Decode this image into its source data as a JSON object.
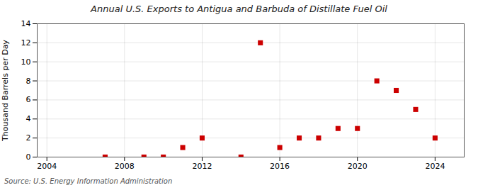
{
  "chart_data": {
    "type": "scatter",
    "title": "Annual U.S. Exports to Antigua and Barbuda of Distillate Fuel Oil",
    "ylabel": "Thousand Barrels per Day",
    "source": "Source: U.S. Energy Information Administration",
    "x": [
      2007,
      2009,
      2010,
      2011,
      2012,
      2014,
      2015,
      2016,
      2017,
      2018,
      2019,
      2020,
      2021,
      2022,
      2023,
      2024
    ],
    "values": [
      0,
      0,
      0,
      1,
      2,
      0,
      12,
      1,
      2,
      2,
      3,
      3,
      8,
      7,
      5,
      2
    ],
    "color": "#cc0000",
    "marker": "square",
    "xlim": [
      2003.5,
      2025.5
    ],
    "ylim": [
      0,
      14
    ],
    "xticks": [
      2004,
      2008,
      2012,
      2016,
      2020,
      2024
    ],
    "yticks": [
      0,
      2,
      4,
      6,
      8,
      10,
      12,
      14
    ],
    "grid": true
  }
}
